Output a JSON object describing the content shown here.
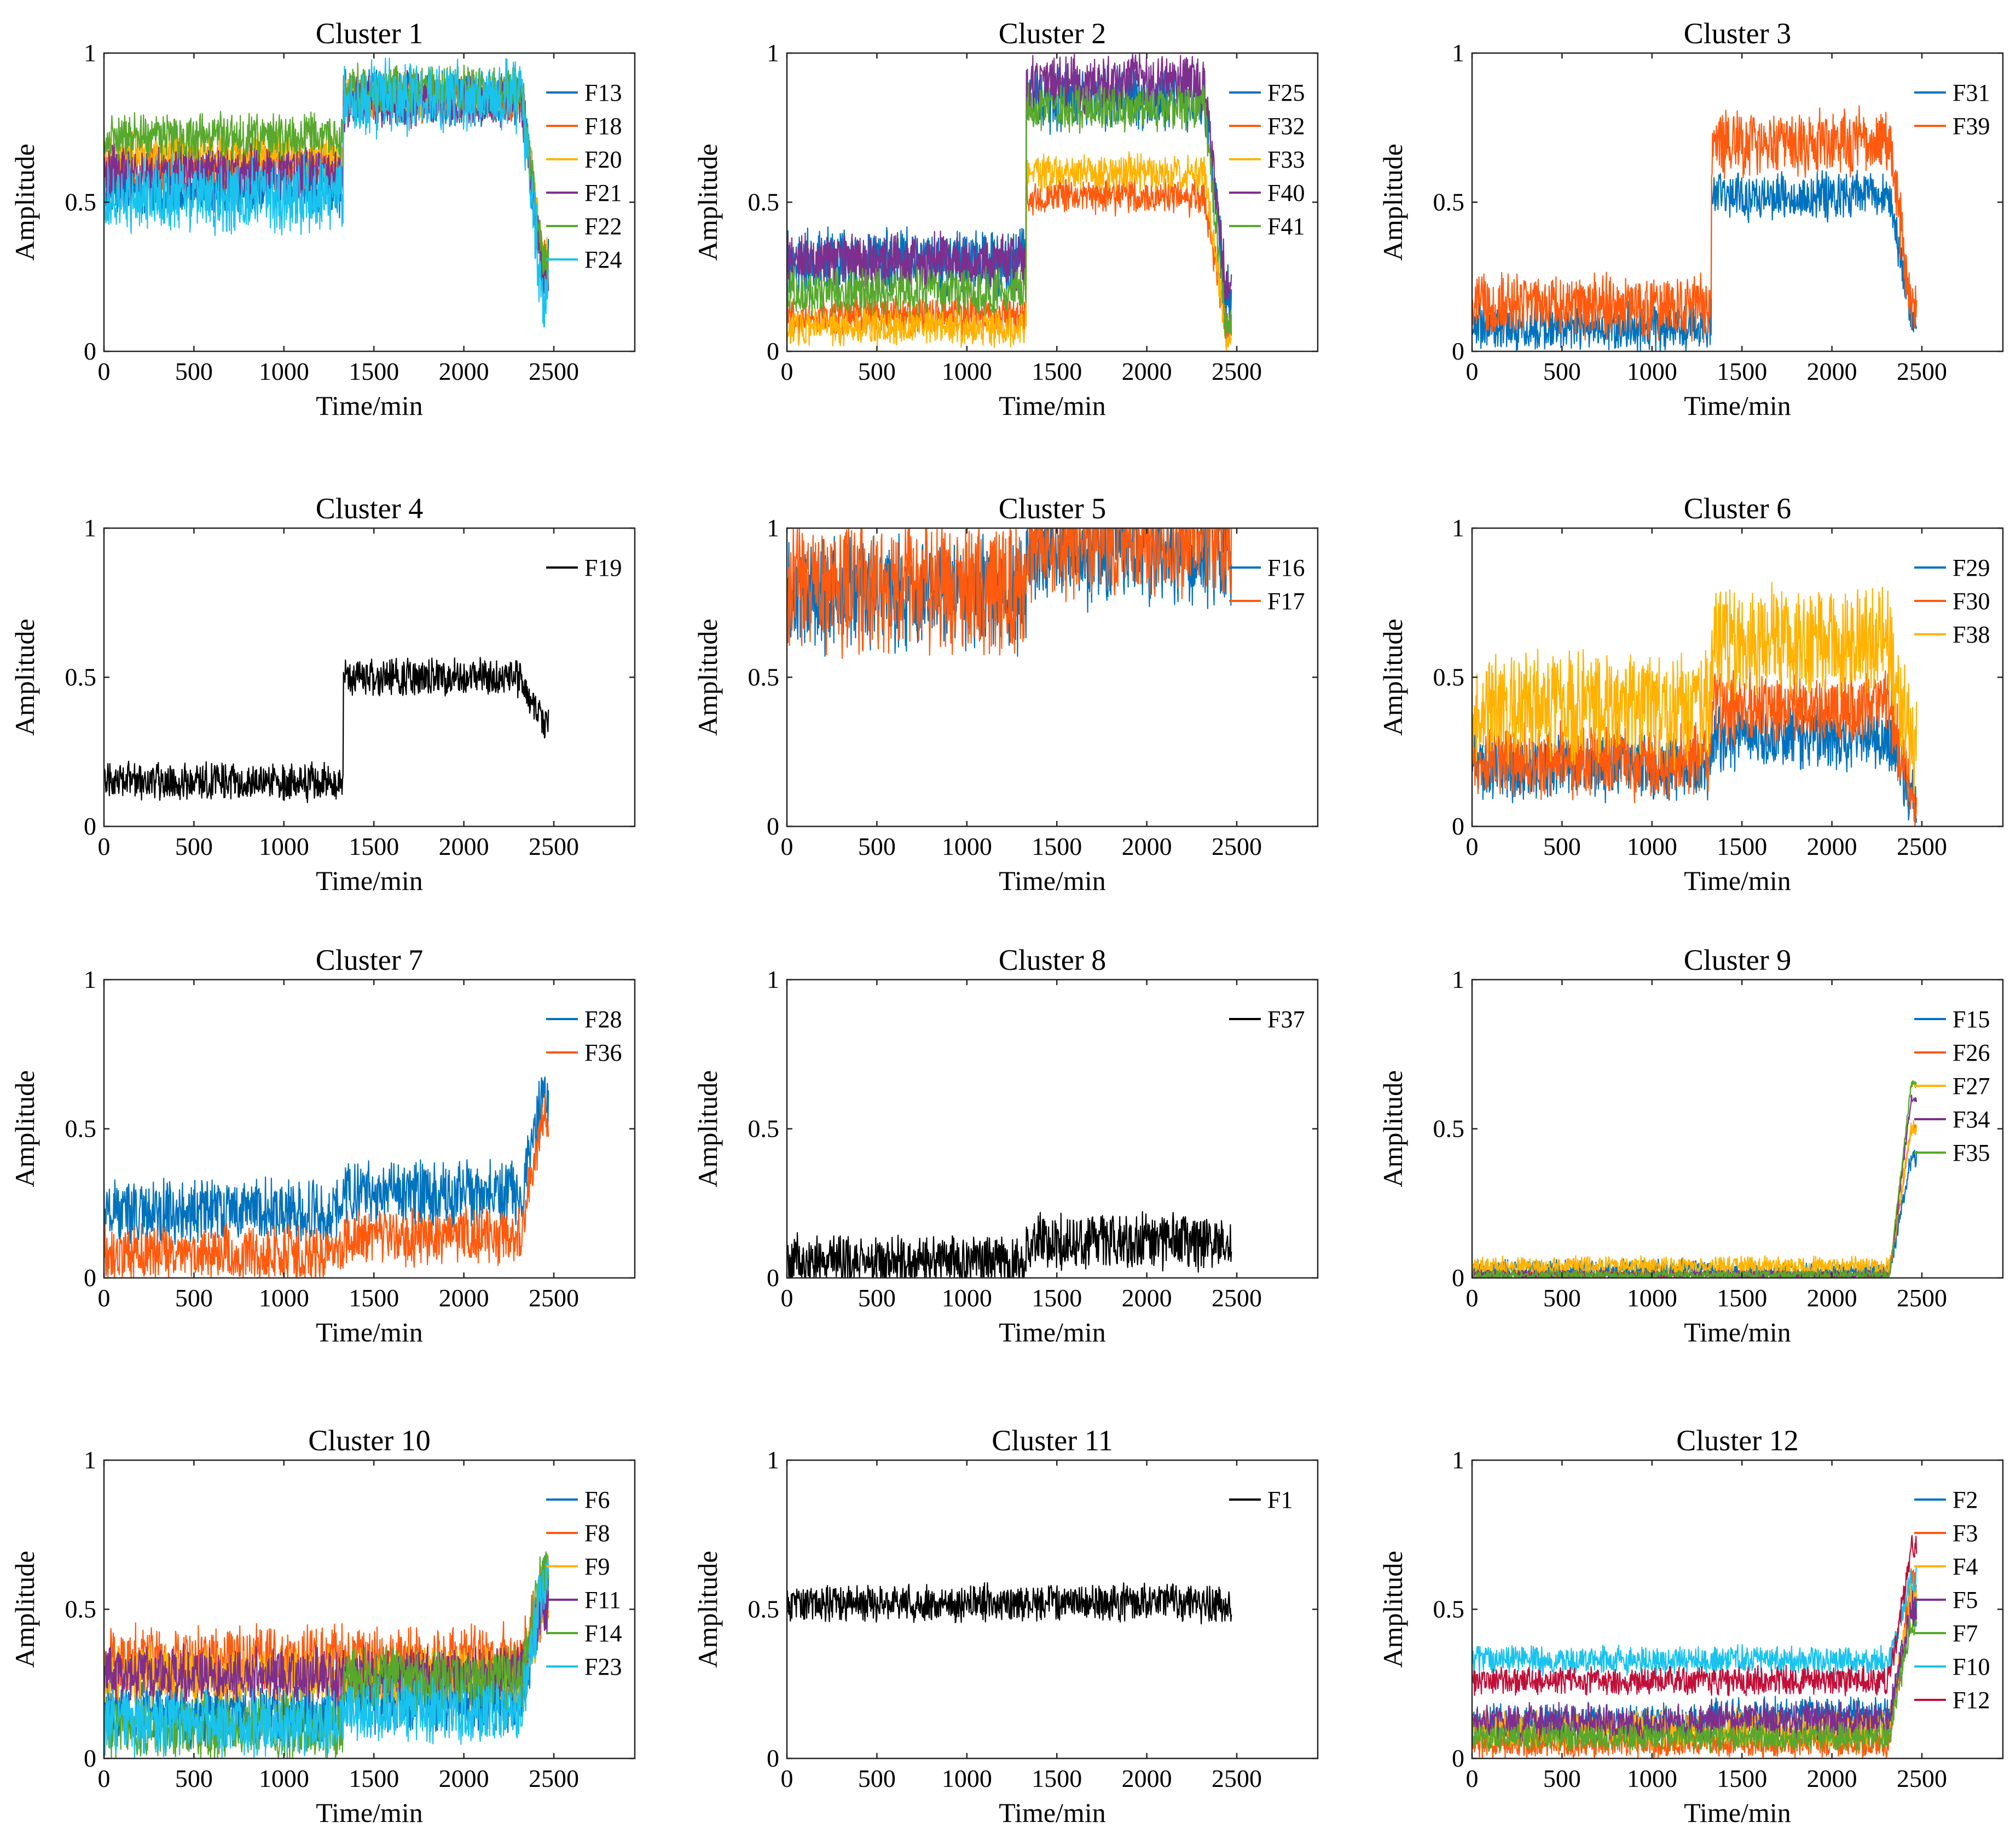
{
  "colors": {
    "blue": "#0072BD",
    "orange": "#FF5A0E",
    "yellow": "#FFB300",
    "purple": "#7E2F8E",
    "green": "#57A82C",
    "cyan": "#19C3EE",
    "crimson": "#C0103A",
    "black": "#000000"
  },
  "chart_data": [
    {
      "type": "line",
      "title": "Cluster 1",
      "xlabel": "Time/min",
      "ylabel": "Amplitude",
      "xlim": [
        0,
        2950
      ],
      "ylim": [
        0,
        1
      ],
      "xticks": [
        "0",
        "500",
        "1000",
        "1500",
        "2000",
        "2500"
      ],
      "yticks": [
        "0",
        "0.5",
        "1"
      ],
      "x_end": 2470,
      "series": [
        {
          "name": "F13",
          "color": "blue",
          "levels": [
            0.55,
            0.85,
            0.3
          ],
          "noise": 0.06
        },
        {
          "name": "F18",
          "color": "orange",
          "levels": [
            0.62,
            0.85,
            0.3
          ],
          "noise": 0.05
        },
        {
          "name": "F20",
          "color": "yellow",
          "levels": [
            0.66,
            0.86,
            0.3
          ],
          "noise": 0.05
        },
        {
          "name": "F21",
          "color": "purple",
          "levels": [
            0.6,
            0.84,
            0.25
          ],
          "noise": 0.06
        },
        {
          "name": "F22",
          "color": "green",
          "levels": [
            0.72,
            0.88,
            0.3
          ],
          "noise": 0.05
        },
        {
          "name": "F24",
          "color": "cyan",
          "levels": [
            0.52,
            0.85,
            0.15
          ],
          "noise": 0.08
        }
      ]
    },
    {
      "type": "line",
      "title": "Cluster 2",
      "xlabel": "Time/min",
      "ylabel": "Amplitude",
      "xlim": [
        0,
        2950
      ],
      "ylim": [
        0,
        1
      ],
      "xticks": [
        "0",
        "500",
        "1000",
        "1500",
        "2000",
        "2500"
      ],
      "yticks": [
        "0",
        "0.5",
        "1"
      ],
      "x_end": 2470,
      "series": [
        {
          "name": "F25",
          "color": "blue",
          "levels": [
            0.3,
            0.85,
            0.2
          ],
          "noise": 0.07
        },
        {
          "name": "F32",
          "color": "orange",
          "levels": [
            0.12,
            0.52,
            0.08
          ],
          "noise": 0.04
        },
        {
          "name": "F33",
          "color": "yellow",
          "levels": [
            0.08,
            0.6,
            0.05
          ],
          "noise": 0.04
        },
        {
          "name": "F40",
          "color": "purple",
          "levels": [
            0.3,
            0.9,
            0.2
          ],
          "noise": 0.06
        },
        {
          "name": "F41",
          "color": "green",
          "levels": [
            0.2,
            0.82,
            0.1
          ],
          "noise": 0.05
        }
      ]
    },
    {
      "type": "line",
      "title": "Cluster 3",
      "xlabel": "Time/min",
      "ylabel": "Amplitude",
      "xlim": [
        0,
        2950
      ],
      "ylim": [
        0,
        1
      ],
      "xticks": [
        "0",
        "500",
        "1000",
        "1500",
        "2000",
        "2500"
      ],
      "yticks": [
        "0",
        "0.5",
        "1"
      ],
      "x_end": 2470,
      "series": [
        {
          "name": "F31",
          "color": "blue",
          "levels": [
            0.08,
            0.52,
            0.12
          ],
          "noise": 0.05
        },
        {
          "name": "F39",
          "color": "orange",
          "levels": [
            0.15,
            0.7,
            0.15
          ],
          "noise": 0.07
        }
      ]
    },
    {
      "type": "line",
      "title": "Cluster 4",
      "xlabel": "Time/min",
      "ylabel": "Amplitude",
      "xlim": [
        0,
        2950
      ],
      "ylim": [
        0,
        1
      ],
      "xticks": [
        "0",
        "500",
        "1000",
        "1500",
        "2000",
        "2500"
      ],
      "yticks": [
        "0",
        "0.5",
        "1"
      ],
      "x_end": 2470,
      "series": [
        {
          "name": "F19",
          "color": "black",
          "levels": [
            0.15,
            0.5,
            0.35
          ],
          "noise": 0.04
        }
      ]
    },
    {
      "type": "line",
      "title": "Cluster 5",
      "xlabel": "Time/min",
      "ylabel": "Amplitude",
      "xlim": [
        0,
        2950
      ],
      "ylim": [
        0,
        1
      ],
      "xticks": [
        "0",
        "500",
        "1000",
        "1500",
        "2000",
        "2500"
      ],
      "yticks": [
        "0",
        "0.5",
        "1"
      ],
      "x_end": 2470,
      "series": [
        {
          "name": "F16",
          "color": "blue",
          "levels": [
            0.78,
            0.93,
            0.9
          ],
          "noise": 0.12
        },
        {
          "name": "F17",
          "color": "orange",
          "levels": [
            0.8,
            0.98,
            0.95
          ],
          "noise": 0.14
        }
      ]
    },
    {
      "type": "line",
      "title": "Cluster 6",
      "xlabel": "Time/min",
      "ylabel": "Amplitude",
      "xlim": [
        0,
        2950
      ],
      "ylim": [
        0,
        1
      ],
      "xticks": [
        "0",
        "500",
        "1000",
        "1500",
        "2000",
        "2500"
      ],
      "yticks": [
        "0",
        "0.5",
        "1"
      ],
      "x_end": 2470,
      "series": [
        {
          "name": "F29",
          "color": "blue",
          "levels": [
            0.2,
            0.3,
            0.1
          ],
          "noise": 0.07
        },
        {
          "name": "F30",
          "color": "orange",
          "levels": [
            0.22,
            0.4,
            0.1
          ],
          "noise": 0.08
        },
        {
          "name": "F38",
          "color": "yellow",
          "levels": [
            0.4,
            0.62,
            0.25
          ],
          "noise": 0.12
        }
      ]
    },
    {
      "type": "line",
      "title": "Cluster 7",
      "xlabel": "Time/min",
      "ylabel": "Amplitude",
      "xlim": [
        0,
        2950
      ],
      "ylim": [
        0,
        1
      ],
      "xticks": [
        "0",
        "500",
        "1000",
        "1500",
        "2000",
        "2500"
      ],
      "yticks": [
        "0",
        "0.5",
        "1"
      ],
      "x_end": 2470,
      "series": [
        {
          "name": "F28",
          "color": "blue",
          "levels": [
            0.22,
            0.28,
            0.6
          ],
          "noise": 0.07
        },
        {
          "name": "F36",
          "color": "orange",
          "levels": [
            0.08,
            0.14,
            0.55
          ],
          "noise": 0.06
        }
      ]
    },
    {
      "type": "line",
      "title": "Cluster 8",
      "xlabel": "Time/min",
      "ylabel": "Amplitude",
      "xlim": [
        0,
        2950
      ],
      "ylim": [
        0,
        1
      ],
      "xticks": [
        "0",
        "500",
        "1000",
        "1500",
        "2000",
        "2500"
      ],
      "yticks": [
        "0",
        "0.5",
        "1"
      ],
      "x_end": 2470,
      "series": [
        {
          "name": "F37",
          "color": "black",
          "levels": [
            0.05,
            0.12,
            0.12
          ],
          "noise": 0.06
        }
      ]
    },
    {
      "type": "line",
      "title": "Cluster 9",
      "xlabel": "Time/min",
      "ylabel": "Amplitude",
      "xlim": [
        0,
        2950
      ],
      "ylim": [
        0,
        1
      ],
      "xticks": [
        "0",
        "500",
        "1000",
        "1500",
        "2000",
        "2500"
      ],
      "yticks": [
        "0",
        "0.5",
        "1"
      ],
      "x_end": 2470,
      "series": [
        {
          "name": "F15",
          "color": "blue",
          "levels": [
            0.03,
            0.02,
            0.4
          ],
          "noise": 0.02
        },
        {
          "name": "F26",
          "color": "orange",
          "levels": [
            0.01,
            0.01,
            0.5
          ],
          "noise": 0.01
        },
        {
          "name": "F27",
          "color": "yellow",
          "levels": [
            0.04,
            0.04,
            0.5
          ],
          "noise": 0.02
        },
        {
          "name": "F34",
          "color": "purple",
          "levels": [
            0.01,
            0.01,
            0.6
          ],
          "noise": 0.01
        },
        {
          "name": "F35",
          "color": "green",
          "levels": [
            0.01,
            0.01,
            0.65
          ],
          "noise": 0.01
        }
      ]
    },
    {
      "type": "line",
      "title": "Cluster 10",
      "xlabel": "Time/min",
      "ylabel": "Amplitude",
      "xlim": [
        0,
        2950
      ],
      "ylim": [
        0,
        1
      ],
      "xticks": [
        "0",
        "500",
        "1000",
        "1500",
        "2000",
        "2500"
      ],
      "yticks": [
        "0",
        "0.5",
        "1"
      ],
      "x_end": 2470,
      "series": [
        {
          "name": "F6",
          "color": "blue",
          "levels": [
            0.15,
            0.2,
            0.6
          ],
          "noise": 0.07
        },
        {
          "name": "F8",
          "color": "orange",
          "levels": [
            0.32,
            0.32,
            0.55
          ],
          "noise": 0.08
        },
        {
          "name": "F9",
          "color": "yellow",
          "levels": [
            0.28,
            0.28,
            0.5
          ],
          "noise": 0.06
        },
        {
          "name": "F11",
          "color": "purple",
          "levels": [
            0.28,
            0.28,
            0.5
          ],
          "noise": 0.06
        },
        {
          "name": "F14",
          "color": "green",
          "levels": [
            0.1,
            0.26,
            0.65
          ],
          "noise": 0.07
        },
        {
          "name": "F23",
          "color": "cyan",
          "levels": [
            0.12,
            0.16,
            0.6
          ],
          "noise": 0.07
        }
      ]
    },
    {
      "type": "line",
      "title": "Cluster 11",
      "xlabel": "Time/min",
      "ylabel": "Amplitude",
      "xlim": [
        0,
        2950
      ],
      "ylim": [
        0,
        1
      ],
      "xticks": [
        "0",
        "500",
        "1000",
        "1500",
        "2000",
        "2500"
      ],
      "yticks": [
        "0",
        "0.5",
        "1"
      ],
      "x_end": 2470,
      "series": [
        {
          "name": "F1",
          "color": "black",
          "levels": [
            0.52,
            0.52,
            0.52
          ],
          "noise": 0.04
        }
      ]
    },
    {
      "type": "line",
      "title": "Cluster 12",
      "xlabel": "Time/min",
      "ylabel": "Amplitude",
      "xlim": [
        0,
        2950
      ],
      "ylim": [
        0,
        1
      ],
      "xticks": [
        "0",
        "500",
        "1000",
        "1500",
        "2000",
        "2500"
      ],
      "yticks": [
        "0",
        "0.5",
        "1"
      ],
      "x_end": 2470,
      "series": [
        {
          "name": "F2",
          "color": "blue",
          "levels": [
            0.12,
            0.14,
            0.5
          ],
          "noise": 0.04
        },
        {
          "name": "F3",
          "color": "orange",
          "levels": [
            0.05,
            0.05,
            0.6
          ],
          "noise": 0.03
        },
        {
          "name": "F4",
          "color": "yellow",
          "levels": [
            0.1,
            0.1,
            0.55
          ],
          "noise": 0.04
        },
        {
          "name": "F5",
          "color": "purple",
          "levels": [
            0.12,
            0.13,
            0.5
          ],
          "noise": 0.04
        },
        {
          "name": "F7",
          "color": "green",
          "levels": [
            0.07,
            0.07,
            0.45
          ],
          "noise": 0.03
        },
        {
          "name": "F10",
          "color": "cyan",
          "levels": [
            0.33,
            0.33,
            0.6
          ],
          "noise": 0.03
        },
        {
          "name": "F12",
          "color": "crimson",
          "levels": [
            0.26,
            0.26,
            0.7
          ],
          "noise": 0.03
        }
      ]
    }
  ]
}
